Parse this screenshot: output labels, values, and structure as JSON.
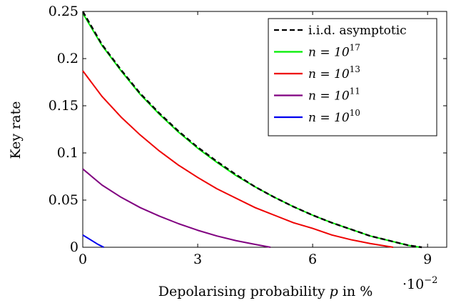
{
  "chart_data": {
    "type": "line",
    "xlabel": "Depolarising probability",
    "xlabel_var": "p",
    "xlabel_unit": "in %",
    "ylabel": "Key rate",
    "x_scale_note": {
      "base": "·10",
      "exponent": "−2"
    },
    "xlim": [
      0,
      0.095
    ],
    "ylim": [
      0,
      0.25
    ],
    "xticks": [
      0,
      0.03,
      0.06,
      0.09
    ],
    "xtick_labels": [
      "0",
      "3",
      "6",
      "9"
    ],
    "yticks": [
      0,
      0.05,
      0.1,
      0.15,
      0.2,
      0.25
    ],
    "ytick_labels": [
      "0",
      "0.05",
      "0.1",
      "0.15",
      "0.2",
      "0.25"
    ],
    "grid": false,
    "legend_position": "top-right",
    "series": [
      {
        "name": "i.i.d. asymptotic",
        "color": "#000000",
        "dash": true,
        "points": [
          [
            0,
            0.25
          ],
          [
            0.005,
            0.215
          ],
          [
            0.01,
            0.188
          ],
          [
            0.015,
            0.163
          ],
          [
            0.02,
            0.142
          ],
          [
            0.025,
            0.123
          ],
          [
            0.03,
            0.106
          ],
          [
            0.035,
            0.091
          ],
          [
            0.04,
            0.077
          ],
          [
            0.045,
            0.064
          ],
          [
            0.05,
            0.053
          ],
          [
            0.055,
            0.043
          ],
          [
            0.06,
            0.034
          ],
          [
            0.065,
            0.026
          ],
          [
            0.07,
            0.019
          ],
          [
            0.075,
            0.012
          ],
          [
            0.08,
            0.007
          ],
          [
            0.085,
            0.002
          ],
          [
            0.0885,
            0
          ]
        ]
      },
      {
        "name_prefix": "n = 10",
        "name_exponent": "17",
        "color": "#00ee00",
        "dash": false,
        "points": [
          [
            0,
            0.248
          ],
          [
            0.005,
            0.214
          ],
          [
            0.01,
            0.187
          ],
          [
            0.015,
            0.162
          ],
          [
            0.02,
            0.141
          ],
          [
            0.025,
            0.122
          ],
          [
            0.03,
            0.105
          ],
          [
            0.035,
            0.09
          ],
          [
            0.04,
            0.076
          ],
          [
            0.045,
            0.064
          ],
          [
            0.05,
            0.053
          ],
          [
            0.055,
            0.043
          ],
          [
            0.06,
            0.034
          ],
          [
            0.065,
            0.026
          ],
          [
            0.07,
            0.019
          ],
          [
            0.075,
            0.012
          ],
          [
            0.08,
            0.007
          ],
          [
            0.085,
            0.002
          ],
          [
            0.088,
            0
          ]
        ]
      },
      {
        "name_prefix": "n = 10",
        "name_exponent": "13",
        "color": "#ee0000",
        "dash": false,
        "points": [
          [
            0,
            0.187
          ],
          [
            0.005,
            0.16
          ],
          [
            0.01,
            0.138
          ],
          [
            0.015,
            0.119
          ],
          [
            0.02,
            0.102
          ],
          [
            0.025,
            0.087
          ],
          [
            0.03,
            0.074
          ],
          [
            0.035,
            0.062
          ],
          [
            0.04,
            0.052
          ],
          [
            0.045,
            0.042
          ],
          [
            0.05,
            0.034
          ],
          [
            0.055,
            0.026
          ],
          [
            0.06,
            0.02
          ],
          [
            0.065,
            0.013
          ],
          [
            0.07,
            0.008
          ],
          [
            0.075,
            0.004
          ],
          [
            0.081,
            0
          ]
        ]
      },
      {
        "name_prefix": "n = 10",
        "name_exponent": "11",
        "color": "#800080",
        "dash": false,
        "points": [
          [
            0,
            0.083
          ],
          [
            0.005,
            0.066
          ],
          [
            0.01,
            0.053
          ],
          [
            0.015,
            0.042
          ],
          [
            0.02,
            0.033
          ],
          [
            0.025,
            0.025
          ],
          [
            0.03,
            0.018
          ],
          [
            0.035,
            0.012
          ],
          [
            0.04,
            0.007
          ],
          [
            0.045,
            0.003
          ],
          [
            0.049,
            0
          ]
        ]
      },
      {
        "name_prefix": "n = 10",
        "name_exponent": "10",
        "color": "#0000ee",
        "dash": false,
        "points": [
          [
            0,
            0.013
          ],
          [
            0.002,
            0.008
          ],
          [
            0.004,
            0.003
          ],
          [
            0.0055,
            0
          ]
        ]
      }
    ]
  }
}
